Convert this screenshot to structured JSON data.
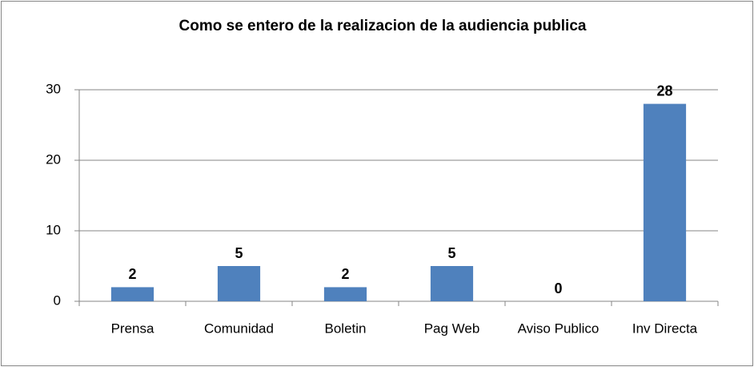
{
  "chart_data": {
    "type": "bar",
    "title": "Como se entero de la realizacion de la audiencia publica",
    "categories": [
      "Prensa",
      "Comunidad",
      "Boletin",
      "Pag Web",
      "Aviso Publico",
      "Inv Directa"
    ],
    "values": [
      2,
      5,
      2,
      5,
      0,
      28
    ],
    "color": "#4f81bd",
    "ylim": [
      0,
      30
    ],
    "yticks": [
      0,
      10,
      20,
      30
    ],
    "grid": true
  }
}
